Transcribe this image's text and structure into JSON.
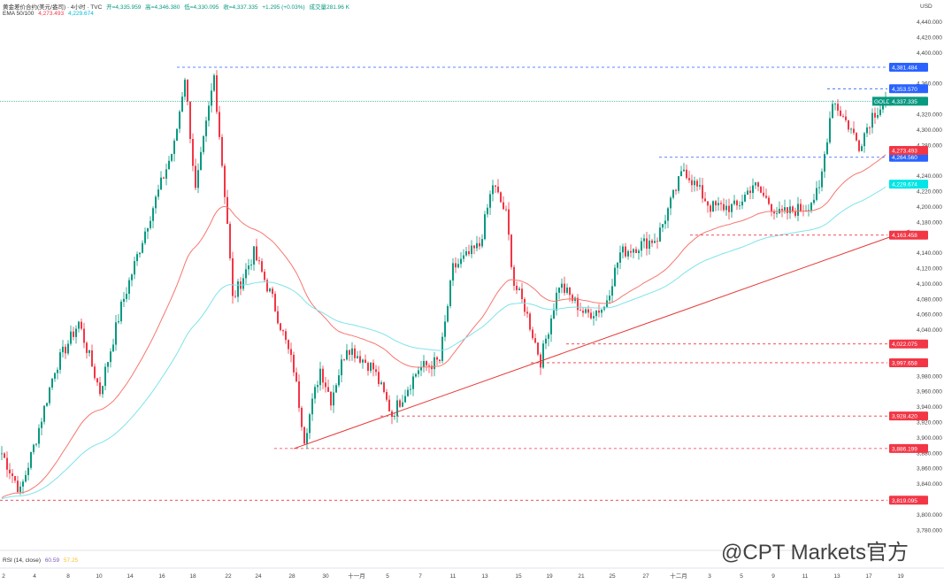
{
  "header": {
    "symbol": "黄金差价合约(美元/盎司) · 4小时 · TVC",
    "open": "开=4,335.959",
    "high": "高=4,346.380",
    "low": "低=4,330.095",
    "close": "收=4,337.335",
    "change": "+1.295 (+0.03%)",
    "volume": "成交量281.96 K"
  },
  "ema": {
    "label": "EMA 50/100",
    "v50": "4,273.493",
    "v100": "4,229.674"
  },
  "rsi": {
    "label": "RSI (14, close)",
    "v1": "60.59",
    "v2": "57.25"
  },
  "watermark": "@CPT Markets官方",
  "colors": {
    "up": "#089981",
    "down": "#f23645",
    "ema50": "#f7766f",
    "ema100": "#7ee3ea",
    "trend": "#e53935",
    "blue": "#2962ff"
  },
  "chart_data": {
    "type": "candlestick",
    "currency": "USD",
    "ylim": [
      3760,
      4460
    ],
    "y_ticks": [
      4440,
      4420,
      4400,
      4360,
      4320,
      4300,
      4280,
      4240,
      4220,
      4200,
      4180,
      4140,
      4120,
      4100,
      4080,
      4060,
      4040,
      3980,
      3960,
      3940,
      3920,
      3900,
      3880,
      3860,
      3840,
      3800,
      3780
    ],
    "x_ticks": [
      "2",
      "4",
      "8",
      "10",
      "14",
      "16",
      "18",
      "22",
      "24",
      "28",
      "30",
      "十一月",
      "5",
      "7",
      "11",
      "13",
      "15",
      "19",
      "21",
      "25",
      "27",
      "十二月",
      "3",
      "5",
      "9",
      "11",
      "13",
      "17",
      "19"
    ],
    "price_path": [
      [
        0,
        3880
      ],
      [
        7,
        3830
      ],
      [
        13,
        3900
      ],
      [
        20,
        3990
      ],
      [
        29,
        4050
      ],
      [
        37,
        3960
      ],
      [
        45,
        4070
      ],
      [
        55,
        4180
      ],
      [
        65,
        4280
      ],
      [
        69,
        4370
      ],
      [
        73,
        4220
      ],
      [
        80,
        4370
      ],
      [
        85,
        4180
      ],
      [
        87,
        4080
      ],
      [
        95,
        4140
      ],
      [
        102,
        4080
      ],
      [
        110,
        3990
      ],
      [
        114,
        3900
      ],
      [
        120,
        3990
      ],
      [
        124,
        3950
      ],
      [
        130,
        4020
      ],
      [
        140,
        3990
      ],
      [
        147,
        3930
      ],
      [
        157,
        3990
      ],
      [
        165,
        4000
      ],
      [
        170,
        4120
      ],
      [
        180,
        4150
      ],
      [
        185,
        4230
      ],
      [
        190,
        4190
      ],
      [
        193,
        4100
      ],
      [
        197,
        4070
      ],
      [
        203,
        4000
      ],
      [
        210,
        4100
      ],
      [
        220,
        4060
      ],
      [
        227,
        4070
      ],
      [
        233,
        4140
      ],
      [
        247,
        4160
      ],
      [
        257,
        4250
      ],
      [
        267,
        4200
      ],
      [
        277,
        4200
      ],
      [
        283,
        4230
      ],
      [
        293,
        4190
      ],
      [
        303,
        4200
      ],
      [
        308,
        4220
      ],
      [
        313,
        4340
      ],
      [
        320,
        4300
      ],
      [
        323,
        4280
      ],
      [
        328,
        4320
      ],
      [
        333,
        4337
      ]
    ],
    "levels": [
      {
        "value": "4,381.484",
        "color": "blue"
      },
      {
        "value": "4,353.570",
        "color": "blue"
      },
      {
        "value": "4,264.560",
        "color": "blue"
      },
      {
        "value": "4,163.458",
        "color": "red"
      },
      {
        "value": "4,022.075",
        "color": "red"
      },
      {
        "value": "3,997.658",
        "color": "red"
      },
      {
        "value": "3,928.420",
        "color": "red"
      },
      {
        "value": "3,886.199",
        "color": "red"
      },
      {
        "value": "3,819.095",
        "color": "red"
      }
    ],
    "price_tags": [
      {
        "label": "GOLD",
        "value": "4,337.335",
        "color": "#089981"
      },
      {
        "label": "",
        "value": "4,273.493",
        "color": "#f23645"
      },
      {
        "label": "",
        "value": "4,229.674",
        "color": "#00e5e5"
      }
    ],
    "trendline": [
      [
        3886,
        110
      ],
      [
        4170,
        342
      ]
    ]
  }
}
